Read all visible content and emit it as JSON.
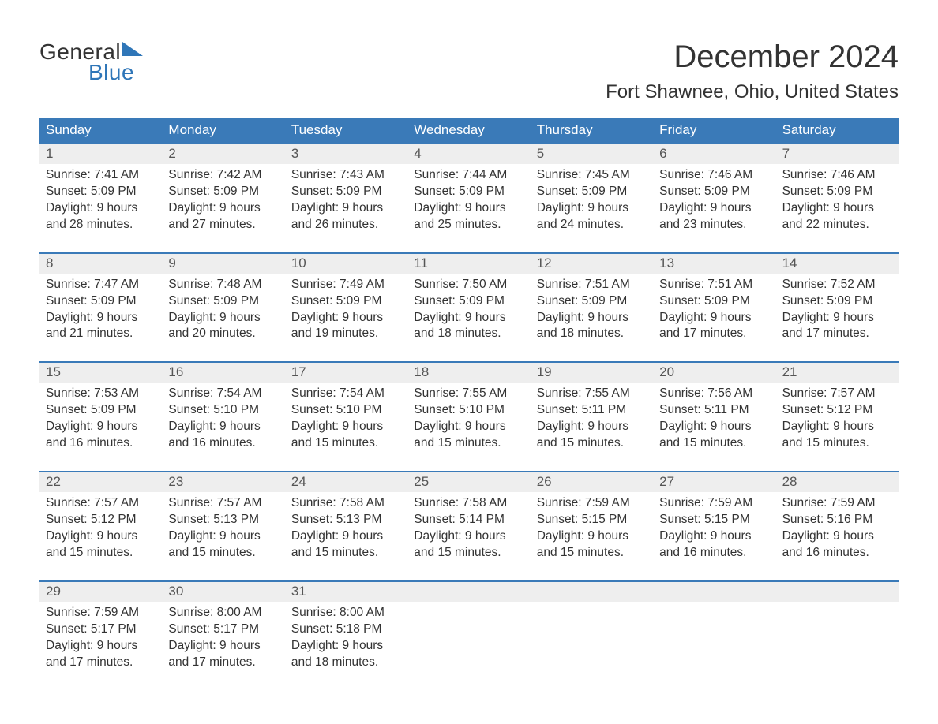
{
  "logo": {
    "line1": "General",
    "line2": "Blue"
  },
  "title": "December 2024",
  "location": "Fort Shawnee, Ohio, United States",
  "colors": {
    "header_bg": "#3a7ab8",
    "header_text": "#ffffff",
    "daynum_bg": "#eeeeee",
    "week_border": "#3a7ab8",
    "text": "#333333",
    "logo_blue": "#2f76b8"
  },
  "day_names": [
    "Sunday",
    "Monday",
    "Tuesday",
    "Wednesday",
    "Thursday",
    "Friday",
    "Saturday"
  ],
  "weeks": [
    [
      {
        "num": "1",
        "sunrise": "7:41 AM",
        "sunset": "5:09 PM",
        "daylight_h": "9",
        "daylight_m": "28"
      },
      {
        "num": "2",
        "sunrise": "7:42 AM",
        "sunset": "5:09 PM",
        "daylight_h": "9",
        "daylight_m": "27"
      },
      {
        "num": "3",
        "sunrise": "7:43 AM",
        "sunset": "5:09 PM",
        "daylight_h": "9",
        "daylight_m": "26"
      },
      {
        "num": "4",
        "sunrise": "7:44 AM",
        "sunset": "5:09 PM",
        "daylight_h": "9",
        "daylight_m": "25"
      },
      {
        "num": "5",
        "sunrise": "7:45 AM",
        "sunset": "5:09 PM",
        "daylight_h": "9",
        "daylight_m": "24"
      },
      {
        "num": "6",
        "sunrise": "7:46 AM",
        "sunset": "5:09 PM",
        "daylight_h": "9",
        "daylight_m": "23"
      },
      {
        "num": "7",
        "sunrise": "7:46 AM",
        "sunset": "5:09 PM",
        "daylight_h": "9",
        "daylight_m": "22"
      }
    ],
    [
      {
        "num": "8",
        "sunrise": "7:47 AM",
        "sunset": "5:09 PM",
        "daylight_h": "9",
        "daylight_m": "21"
      },
      {
        "num": "9",
        "sunrise": "7:48 AM",
        "sunset": "5:09 PM",
        "daylight_h": "9",
        "daylight_m": "20"
      },
      {
        "num": "10",
        "sunrise": "7:49 AM",
        "sunset": "5:09 PM",
        "daylight_h": "9",
        "daylight_m": "19"
      },
      {
        "num": "11",
        "sunrise": "7:50 AM",
        "sunset": "5:09 PM",
        "daylight_h": "9",
        "daylight_m": "18"
      },
      {
        "num": "12",
        "sunrise": "7:51 AM",
        "sunset": "5:09 PM",
        "daylight_h": "9",
        "daylight_m": "18"
      },
      {
        "num": "13",
        "sunrise": "7:51 AM",
        "sunset": "5:09 PM",
        "daylight_h": "9",
        "daylight_m": "17"
      },
      {
        "num": "14",
        "sunrise": "7:52 AM",
        "sunset": "5:09 PM",
        "daylight_h": "9",
        "daylight_m": "17"
      }
    ],
    [
      {
        "num": "15",
        "sunrise": "7:53 AM",
        "sunset": "5:09 PM",
        "daylight_h": "9",
        "daylight_m": "16"
      },
      {
        "num": "16",
        "sunrise": "7:54 AM",
        "sunset": "5:10 PM",
        "daylight_h": "9",
        "daylight_m": "16"
      },
      {
        "num": "17",
        "sunrise": "7:54 AM",
        "sunset": "5:10 PM",
        "daylight_h": "9",
        "daylight_m": "15"
      },
      {
        "num": "18",
        "sunrise": "7:55 AM",
        "sunset": "5:10 PM",
        "daylight_h": "9",
        "daylight_m": "15"
      },
      {
        "num": "19",
        "sunrise": "7:55 AM",
        "sunset": "5:11 PM",
        "daylight_h": "9",
        "daylight_m": "15"
      },
      {
        "num": "20",
        "sunrise": "7:56 AM",
        "sunset": "5:11 PM",
        "daylight_h": "9",
        "daylight_m": "15"
      },
      {
        "num": "21",
        "sunrise": "7:57 AM",
        "sunset": "5:12 PM",
        "daylight_h": "9",
        "daylight_m": "15"
      }
    ],
    [
      {
        "num": "22",
        "sunrise": "7:57 AM",
        "sunset": "5:12 PM",
        "daylight_h": "9",
        "daylight_m": "15"
      },
      {
        "num": "23",
        "sunrise": "7:57 AM",
        "sunset": "5:13 PM",
        "daylight_h": "9",
        "daylight_m": "15"
      },
      {
        "num": "24",
        "sunrise": "7:58 AM",
        "sunset": "5:13 PM",
        "daylight_h": "9",
        "daylight_m": "15"
      },
      {
        "num": "25",
        "sunrise": "7:58 AM",
        "sunset": "5:14 PM",
        "daylight_h": "9",
        "daylight_m": "15"
      },
      {
        "num": "26",
        "sunrise": "7:59 AM",
        "sunset": "5:15 PM",
        "daylight_h": "9",
        "daylight_m": "15"
      },
      {
        "num": "27",
        "sunrise": "7:59 AM",
        "sunset": "5:15 PM",
        "daylight_h": "9",
        "daylight_m": "16"
      },
      {
        "num": "28",
        "sunrise": "7:59 AM",
        "sunset": "5:16 PM",
        "daylight_h": "9",
        "daylight_m": "16"
      }
    ],
    [
      {
        "num": "29",
        "sunrise": "7:59 AM",
        "sunset": "5:17 PM",
        "daylight_h": "9",
        "daylight_m": "17"
      },
      {
        "num": "30",
        "sunrise": "8:00 AM",
        "sunset": "5:17 PM",
        "daylight_h": "9",
        "daylight_m": "17"
      },
      {
        "num": "31",
        "sunrise": "8:00 AM",
        "sunset": "5:18 PM",
        "daylight_h": "9",
        "daylight_m": "18"
      },
      null,
      null,
      null,
      null
    ]
  ],
  "labels": {
    "sunrise_prefix": "Sunrise: ",
    "sunset_prefix": "Sunset: ",
    "daylight_prefix": "Daylight: ",
    "hours_word": " hours",
    "and_word": "and ",
    "minutes_word": " minutes."
  }
}
